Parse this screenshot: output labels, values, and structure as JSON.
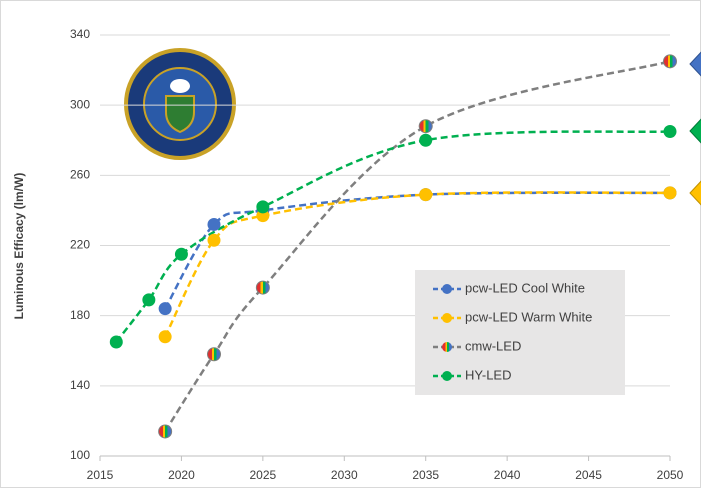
{
  "chart_data": {
    "type": "line",
    "y_label": "Luminous Efficacy (lm/W)",
    "xlim": [
      2015,
      2050
    ],
    "xticks": [
      2015,
      2020,
      2025,
      2030,
      2035,
      2040,
      2045,
      2050
    ],
    "ylim": [
      100,
      340
    ],
    "yticks": [
      100,
      140,
      180,
      220,
      260,
      300,
      340
    ],
    "grid": true,
    "legend": "lower right",
    "series": [
      {
        "name": "pcw-LED Cool White",
        "color": "#4472c4",
        "x": [
          2019,
          2022,
          2025,
          2035,
          2050
        ],
        "values": [
          184,
          232,
          240,
          249,
          250
        ]
      },
      {
        "name": "pcw-LED Warm White",
        "color": "#ffc000",
        "x": [
          2019,
          2022,
          2025,
          2035,
          2050
        ],
        "values": [
          168,
          223,
          237,
          249,
          250
        ]
      },
      {
        "name": "cmw-LED",
        "color": "#7f7f7f",
        "x": [
          2019,
          2022,
          2025,
          2035,
          2050
        ],
        "values": [
          114,
          158,
          196,
          288,
          325
        ]
      },
      {
        "name": "HY-LED",
        "color": "#00b050",
        "x": [
          2016,
          2018,
          2020,
          2025,
          2035,
          2050
        ],
        "values": [
          165,
          189,
          215,
          242,
          280,
          285
        ]
      }
    ]
  }
}
